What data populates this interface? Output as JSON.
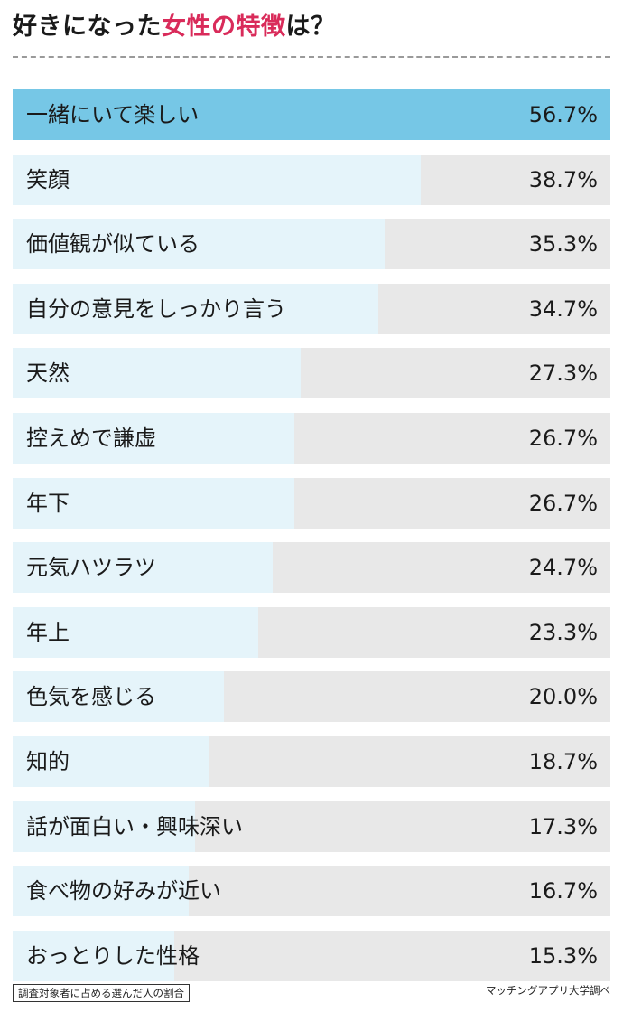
{
  "title": {
    "prefix": "好きになった",
    "accent": "女性の特徴",
    "suffix": "は？"
  },
  "colors": {
    "accent_text": "#d92b5a",
    "top_bar": "#76c7e6",
    "bar": "#e5f4fa",
    "track": "#e8e8e8"
  },
  "chart_data": {
    "type": "bar",
    "orientation": "horizontal",
    "max": 56.7,
    "categories": [
      "一緒にいて楽しい",
      "笑顔",
      "価値観が似ている",
      "自分の意見をしっかり言う",
      "天然",
      "控えめで謙虚",
      "年下",
      "元気ハツラツ",
      "年上",
      "色気を感じる",
      "知的",
      "話が面白い・興味深い",
      "食べ物の好みが近い",
      "おっとりした性格"
    ],
    "values": [
      56.7,
      38.7,
      35.3,
      34.7,
      27.3,
      26.7,
      26.7,
      24.7,
      23.3,
      20.0,
      18.7,
      17.3,
      16.7,
      15.3
    ],
    "value_labels": [
      "56.7%",
      "38.7%",
      "35.3%",
      "34.7%",
      "27.3%",
      "26.7%",
      "26.7%",
      "24.7%",
      "23.3%",
      "20.0%",
      "18.7%",
      "17.3%",
      "16.7%",
      "15.3%"
    ]
  },
  "footer": {
    "note": "調査対象者に占める選んだ人の割合",
    "source": "マッチングアプリ大学調べ"
  }
}
